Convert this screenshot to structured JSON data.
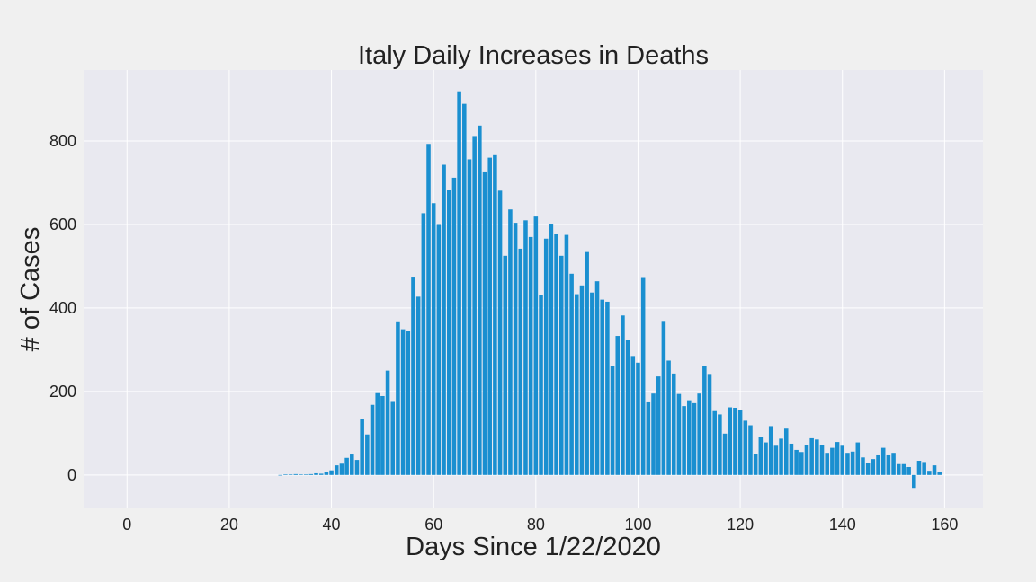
{
  "chart_data": {
    "type": "bar",
    "title": "Italy Daily Increases in Deaths",
    "xlabel": "Days Since 1/22/2020",
    "ylabel": "# of Cases",
    "xlim": [
      -8.5,
      167.5
    ],
    "ylim": [
      -80,
      970
    ],
    "xticks": [
      "0",
      "20",
      "40",
      "60",
      "80",
      "100",
      "120",
      "140",
      "160"
    ],
    "yticks": [
      "0",
      "200",
      "400",
      "600",
      "800"
    ],
    "grid": true,
    "colors": {
      "bar": "#1a8fd0",
      "plot_background": "#e9e9f0",
      "figure_background": "#f0f0f0"
    },
    "x": [
      30,
      31,
      32,
      33,
      34,
      35,
      36,
      37,
      38,
      39,
      40,
      41,
      42,
      43,
      44,
      45,
      46,
      47,
      48,
      49,
      50,
      51,
      52,
      53,
      54,
      55,
      56,
      57,
      58,
      59,
      60,
      61,
      62,
      63,
      64,
      65,
      66,
      67,
      68,
      69,
      70,
      71,
      72,
      73,
      74,
      75,
      76,
      77,
      78,
      79,
      80,
      81,
      82,
      83,
      84,
      85,
      86,
      87,
      88,
      89,
      90,
      91,
      92,
      93,
      94,
      95,
      96,
      97,
      98,
      99,
      100,
      101,
      102,
      103,
      104,
      105,
      106,
      107,
      108,
      109,
      110,
      111,
      112,
      113,
      114,
      115,
      116,
      117,
      118,
      119,
      120,
      121,
      122,
      123,
      124,
      125,
      126,
      127,
      128,
      129,
      130,
      131,
      132,
      133,
      134,
      135,
      136,
      137,
      138,
      139,
      140,
      141,
      142,
      143,
      144,
      145,
      146,
      147,
      148,
      149,
      150,
      151,
      152,
      153,
      154,
      155,
      156,
      157,
      158,
      159
    ],
    "values": [
      0,
      1,
      1,
      2,
      1,
      1,
      2,
      4,
      3,
      7,
      11,
      23,
      27,
      41,
      49,
      36,
      133,
      97,
      168,
      196,
      189,
      250,
      175,
      368,
      349,
      345,
      475,
      427,
      627,
      793,
      651,
      601,
      743,
      683,
      712,
      919,
      889,
      756,
      812,
      837,
      727,
      760,
      766,
      681,
      525,
      636,
      604,
      542,
      610,
      570,
      619,
      431,
      566,
      602,
      578,
      525,
      575,
      482,
      433,
      454,
      534,
      437,
      464,
      420,
      415,
      260,
      333,
      382,
      323,
      285,
      269,
      474,
      174,
      195,
      236,
      369,
      274,
      243,
      194,
      165,
      179,
      172,
      195,
      262,
      242,
      153,
      145,
      99,
      162,
      161,
      156,
      130,
      119,
      50,
      92,
      78,
      117,
      70,
      87,
      111,
      75,
      60,
      55,
      71,
      88,
      85,
      72,
      53,
      65,
      79,
      70,
      53,
      56,
      78,
      42,
      28,
      38,
      47,
      65,
      47,
      53,
      26,
      26,
      19,
      -31,
      34,
      31,
      10,
      23,
      7
    ]
  }
}
